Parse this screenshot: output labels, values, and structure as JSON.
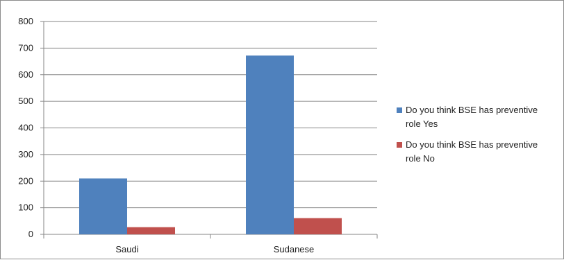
{
  "chart_data": {
    "type": "bar",
    "categories": [
      "Saudi",
      "Sudanese"
    ],
    "series": [
      {
        "name": "Do you think BSE has preventive role Yes",
        "values": [
          210,
          672
        ],
        "color": "#4f81bd"
      },
      {
        "name": "Do you think BSE has preventive role No",
        "values": [
          27,
          61
        ],
        "color": "#c0504d"
      }
    ],
    "y_ticks": [
      "0",
      "100",
      "200",
      "300",
      "400",
      "500",
      "600",
      "700",
      "800"
    ],
    "ylim": [
      0,
      800
    ],
    "grid": true,
    "legend_position": "right",
    "title": "",
    "xlabel": "",
    "ylabel": ""
  }
}
